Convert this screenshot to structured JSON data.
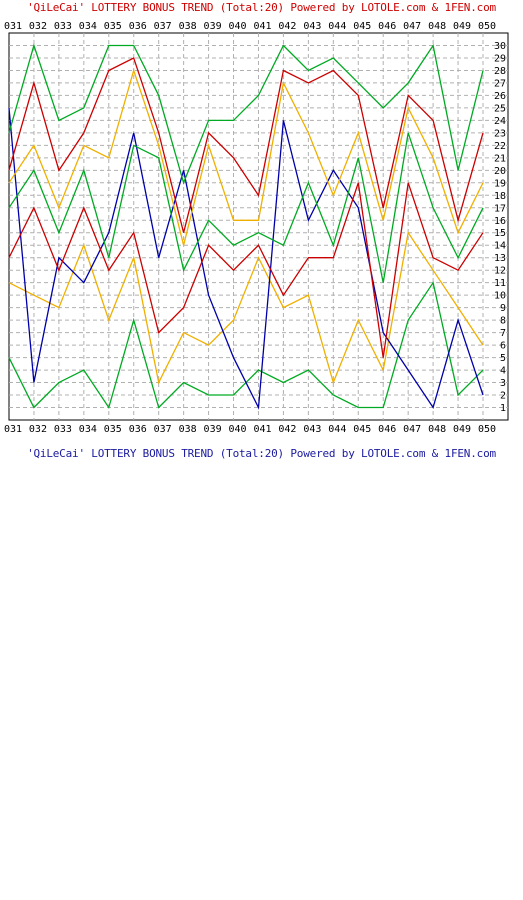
{
  "page": {
    "title_top": "'QiLeCai' LOTTERY BONUS TREND (Total:20)  Powered by LOTOLE.com & 1FEN.com",
    "title_bottom": "'QiLeCai' LOTTERY BONUS TREND (Total:20)  Powered by LOTOLE.com & 1FEN.com"
  },
  "chart_data": {
    "type": "line",
    "title": "'QiLeCai' LOTTERY BONUS TREND (Total:20)",
    "x": [
      "031",
      "032",
      "033",
      "034",
      "035",
      "036",
      "037",
      "038",
      "039",
      "040",
      "041",
      "042",
      "043",
      "044",
      "045",
      "046",
      "047",
      "048",
      "049",
      "050"
    ],
    "ylim": [
      0,
      31
    ],
    "yticks": [
      1,
      2,
      3,
      4,
      5,
      6,
      7,
      8,
      9,
      10,
      11,
      12,
      13,
      14,
      15,
      16,
      17,
      18,
      19,
      20,
      21,
      22,
      23,
      24,
      25,
      26,
      27,
      28,
      29,
      30
    ],
    "grid": true,
    "series": [
      {
        "color": "#00aa22",
        "values": [
          5,
          1,
          3,
          4,
          1,
          8,
          1,
          3,
          2,
          2,
          4,
          3,
          4,
          2,
          1,
          1,
          8,
          11,
          2,
          4
        ]
      },
      {
        "color": "#f0b000",
        "values": [
          11,
          10,
          9,
          14,
          8,
          13,
          3,
          7,
          6,
          8,
          13,
          9,
          10,
          3,
          8,
          4,
          15,
          12,
          9,
          6
        ]
      },
      {
        "color": "#0000aa",
        "values": [
          25,
          3,
          13,
          11,
          15,
          23,
          13,
          20,
          10,
          5,
          1,
          24,
          16,
          20,
          17,
          7,
          4,
          1,
          8,
          2
        ]
      },
      {
        "color": "#cc0000",
        "values": [
          13,
          17,
          12,
          17,
          12,
          15,
          7,
          9,
          14,
          12,
          14,
          10,
          13,
          13,
          19,
          5,
          19,
          13,
          12,
          15
        ]
      },
      {
        "color": "#00aa22",
        "values": [
          17,
          20,
          15,
          20,
          13,
          22,
          21,
          12,
          16,
          14,
          15,
          14,
          19,
          14,
          21,
          11,
          23,
          17,
          13,
          17
        ]
      },
      {
        "color": "#f0b000",
        "values": [
          19,
          22,
          17,
          22,
          21,
          28,
          22,
          14,
          22,
          16,
          16,
          27,
          23,
          18,
          23,
          16,
          25,
          21,
          15,
          19
        ]
      },
      {
        "color": "#cc0000",
        "values": [
          20,
          27,
          20,
          23,
          28,
          29,
          23,
          15,
          23,
          21,
          18,
          28,
          27,
          28,
          26,
          17,
          26,
          24,
          16,
          23
        ]
      },
      {
        "color": "#00aa22",
        "values": [
          23,
          30,
          24,
          25,
          30,
          30,
          26,
          19,
          24,
          24,
          26,
          30,
          28,
          29,
          27,
          25,
          27,
          30,
          20,
          28
        ]
      }
    ]
  }
}
